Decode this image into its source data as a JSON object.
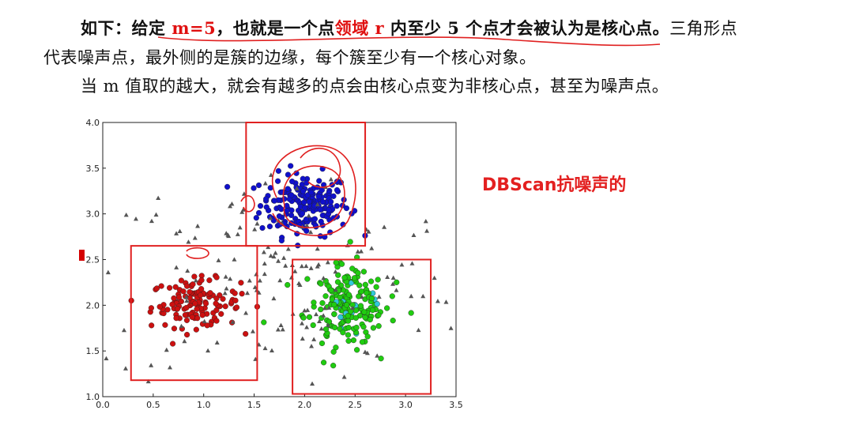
{
  "text": {
    "l1_a": "如下：给定 ",
    "l1_m": "m=5",
    "l1_b": "，也就是一个点",
    "l1_r": "领域 r",
    "l1_c": " 内至少 5 个点才会被认为是核心点。",
    "l1_d": "三角形点",
    "l2": "代表噪声点，最外侧的是簇的边缘，每个簇至少有一个核心对象。",
    "l3": "当 m 值取的越大，就会有越多的点会由核心点变为非核心点，甚至为噪声点。"
  },
  "annotation": "DBScan抗噪声的",
  "colors": {
    "red_text": "#e01010",
    "annotation": "#e32020",
    "box": "#e02020",
    "cluster_blue": "#1010cc",
    "cluster_red": "#cc1010",
    "cluster_green": "#20cc10",
    "edge_cyan": "#30c8d8",
    "noise": "#555555"
  },
  "chart_data": {
    "type": "scatter",
    "x_ticks": [
      "0.0",
      "0.5",
      "1.0",
      "1.5",
      "2.0",
      "2.5",
      "3.0",
      "3.5"
    ],
    "y_ticks": [
      "1.0",
      "1.5",
      "2.0",
      "2.5",
      "3.0",
      "3.5",
      "4.0"
    ],
    "xlim": [
      0.0,
      3.5
    ],
    "ylim": [
      1.0,
      4.0
    ],
    "series": [
      {
        "color": "blue",
        "marker": "circle",
        "center": [
          2.0,
          3.1
        ],
        "spread": [
          0.22,
          0.17
        ],
        "count": 200
      },
      {
        "color": "red",
        "marker": "circle",
        "center": [
          0.92,
          2.02
        ],
        "spread": [
          0.22,
          0.13
        ],
        "count": 130
      },
      {
        "color": "green",
        "marker": "circle",
        "center": [
          2.4,
          2.0
        ],
        "spread": [
          0.2,
          0.22
        ],
        "count": 200
      },
      {
        "color": "gray",
        "marker": "triangle",
        "center": [
          1.75,
          2.3
        ],
        "spread": [
          0.9,
          0.6
        ],
        "count": 160
      }
    ],
    "boxes": [
      {
        "x": [
          1.42,
          2.6
        ],
        "y": [
          2.65,
          4.0
        ]
      },
      {
        "x": [
          0.28,
          1.53
        ],
        "y": [
          1.18,
          2.65
        ]
      },
      {
        "x": [
          1.88,
          3.25
        ],
        "y": [
          1.03,
          2.5
        ]
      }
    ]
  }
}
